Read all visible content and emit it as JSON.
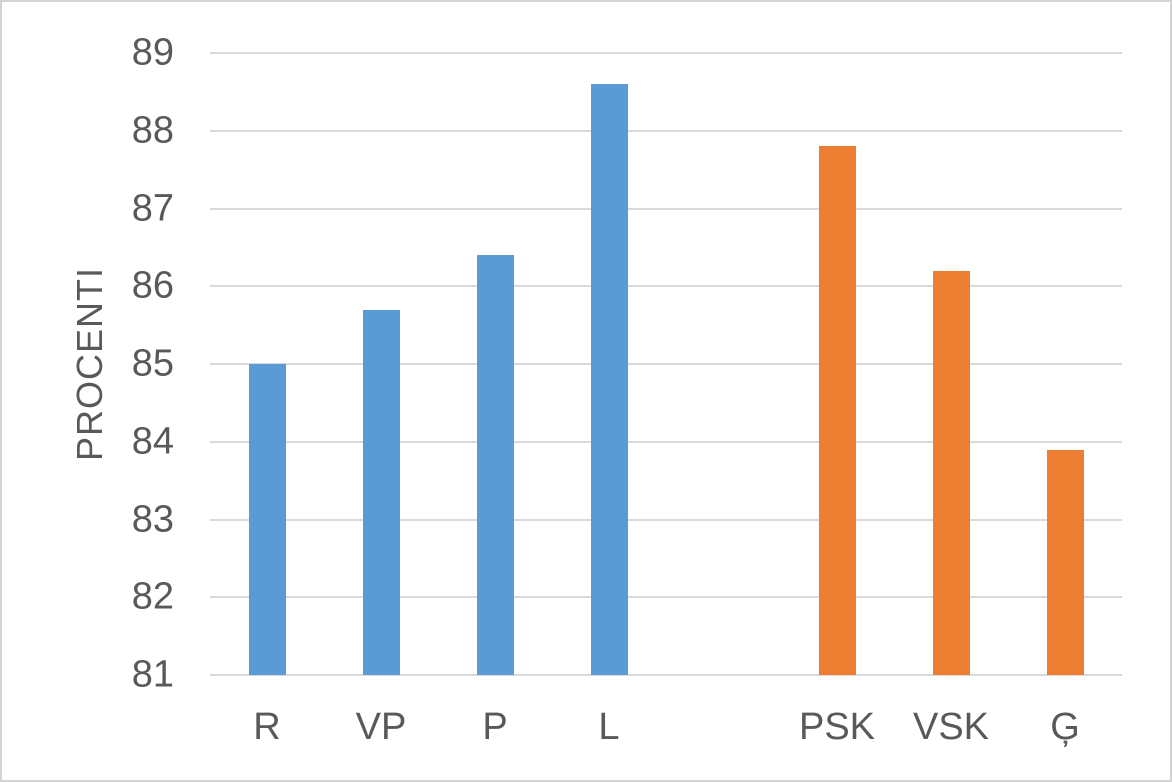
{
  "chart_data": {
    "type": "bar",
    "title": "",
    "xlabel": "",
    "ylabel": "PROCENTI",
    "categories": [
      "R",
      "VP",
      "P",
      "L",
      "",
      "PSK",
      "VSK",
      "Ģ"
    ],
    "values": [
      85.0,
      85.7,
      86.4,
      88.6,
      null,
      87.8,
      86.2,
      83.9
    ],
    "bar_colors": [
      "#5B9BD5",
      "#5B9BD5",
      "#5B9BD5",
      "#5B9BD5",
      null,
      "#ED7D31",
      "#ED7D31",
      "#ED7D31"
    ],
    "group_colors": {
      "left_group": "#5B9BD5",
      "right_group": "#ED7D31"
    },
    "ylim": [
      81,
      89
    ],
    "yticks": [
      89,
      88,
      87,
      86,
      85,
      84,
      83,
      82,
      81
    ],
    "grid": true,
    "legend": false
  },
  "style": {
    "background": "#FFFFFF",
    "border_color": "#D3D3D3",
    "gridline_color": "#D9D9D9",
    "text_color": "#595959"
  }
}
